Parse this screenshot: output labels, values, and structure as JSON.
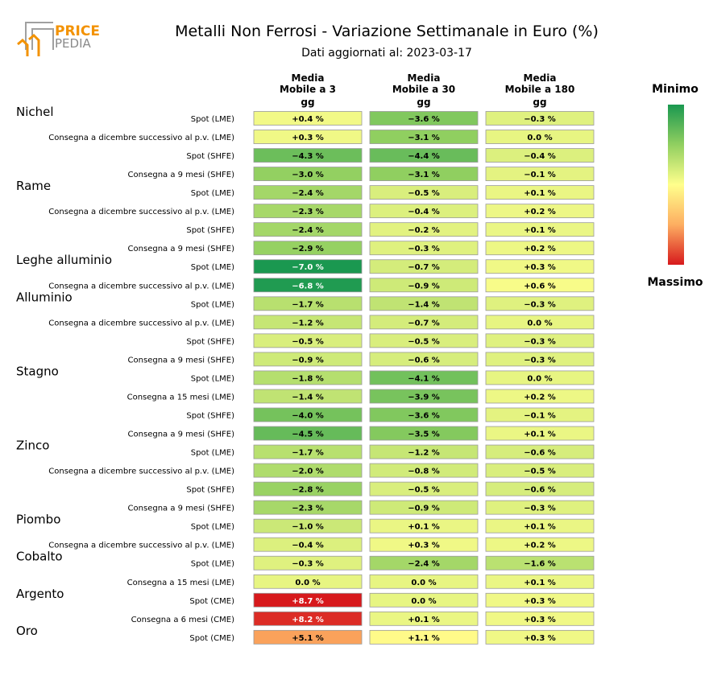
{
  "title": "Metalli Non Ferrosi - Variazione Settimanale in Euro (%)",
  "subtitle": "Dati aggiornati al: 2023-03-17",
  "logo": {
    "text_top": "PRICE",
    "text_bottom": "PEDIA",
    "color_top": "#f39200",
    "color_bottom": "#8a8a8a"
  },
  "legend": {
    "min_label": "Minimo",
    "max_label": "Massimo",
    "colors": [
      "#1a9850",
      "#91cf60",
      "#ffff8c",
      "#fdae61",
      "#d7191c"
    ]
  },
  "chart_data": {
    "type": "table",
    "columns": [
      {
        "line1": "Media",
        "line2": "Mobile a 3",
        "line3": "gg"
      },
      {
        "line1": "Media",
        "line2": "Mobile a 30",
        "line3": "gg"
      },
      {
        "line1": "Media",
        "line2": "Mobile a 180",
        "line3": "gg"
      }
    ],
    "rows": [
      {
        "group": "Nichel",
        "label": "Spot (LME)",
        "values": [
          0.4,
          -3.6,
          -0.3
        ]
      },
      {
        "group": "",
        "label": "Consegna a dicembre successivo al p.v. (LME)",
        "values": [
          0.3,
          -3.1,
          0.0
        ]
      },
      {
        "group": "",
        "label": "Spot (SHFE)",
        "values": [
          -4.3,
          -4.4,
          -0.4
        ]
      },
      {
        "group": "",
        "label": "Consegna a 9 mesi (SHFE)",
        "values": [
          -3.0,
          -3.1,
          -0.1
        ]
      },
      {
        "group": "Rame",
        "label": "Spot (LME)",
        "values": [
          -2.4,
          -0.5,
          0.1
        ]
      },
      {
        "group": "",
        "label": "Consegna a dicembre successivo al p.v. (LME)",
        "values": [
          -2.3,
          -0.4,
          0.2
        ]
      },
      {
        "group": "",
        "label": "Spot (SHFE)",
        "values": [
          -2.4,
          -0.2,
          0.1
        ]
      },
      {
        "group": "",
        "label": "Consegna a 9 mesi (SHFE)",
        "values": [
          -2.9,
          -0.3,
          0.2
        ]
      },
      {
        "group": "Leghe alluminio",
        "label": "Spot (LME)",
        "values": [
          -7.0,
          -0.7,
          0.3
        ]
      },
      {
        "group": "",
        "label": "Consegna a dicembre successivo al p.v. (LME)",
        "values": [
          -6.8,
          -0.9,
          0.6
        ]
      },
      {
        "group": "Alluminio",
        "label": "Spot (LME)",
        "values": [
          -1.7,
          -1.4,
          -0.3
        ]
      },
      {
        "group": "",
        "label": "Consegna a dicembre successivo al p.v. (LME)",
        "values": [
          -1.2,
          -0.7,
          0.0
        ]
      },
      {
        "group": "",
        "label": "Spot (SHFE)",
        "values": [
          -0.5,
          -0.5,
          -0.3
        ]
      },
      {
        "group": "",
        "label": "Consegna a 9 mesi (SHFE)",
        "values": [
          -0.9,
          -0.6,
          -0.3
        ]
      },
      {
        "group": "Stagno",
        "label": "Spot (LME)",
        "values": [
          -1.8,
          -4.1,
          0.0
        ]
      },
      {
        "group": "",
        "label": "Consegna a 15 mesi (LME)",
        "values": [
          -1.4,
          -3.9,
          0.2
        ]
      },
      {
        "group": "",
        "label": "Spot (SHFE)",
        "values": [
          -4.0,
          -3.6,
          -0.1
        ]
      },
      {
        "group": "",
        "label": "Consegna a 9 mesi (SHFE)",
        "values": [
          -4.5,
          -3.5,
          0.1
        ]
      },
      {
        "group": "Zinco",
        "label": "Spot (LME)",
        "values": [
          -1.7,
          -1.2,
          -0.6
        ]
      },
      {
        "group": "",
        "label": "Consegna a dicembre successivo al p.v. (LME)",
        "values": [
          -2.0,
          -0.8,
          -0.5
        ]
      },
      {
        "group": "",
        "label": "Spot (SHFE)",
        "values": [
          -2.8,
          -0.5,
          -0.6
        ]
      },
      {
        "group": "",
        "label": "Consegna a 9 mesi (SHFE)",
        "values": [
          -2.3,
          -0.9,
          -0.3
        ]
      },
      {
        "group": "Piombo",
        "label": "Spot (LME)",
        "values": [
          -1.0,
          0.1,
          0.1
        ]
      },
      {
        "group": "",
        "label": "Consegna a dicembre successivo al p.v. (LME)",
        "values": [
          -0.4,
          0.3,
          0.2
        ]
      },
      {
        "group": "Cobalto",
        "label": "Spot (LME)",
        "values": [
          -0.3,
          -2.4,
          -1.6
        ]
      },
      {
        "group": "",
        "label": "Consegna a 15 mesi (LME)",
        "values": [
          0.0,
          0.0,
          0.1
        ]
      },
      {
        "group": "Argento",
        "label": "Spot (CME)",
        "values": [
          8.7,
          0.0,
          0.3
        ]
      },
      {
        "group": "",
        "label": "Consegna a 6 mesi (CME)",
        "values": [
          8.2,
          0.1,
          0.3
        ]
      },
      {
        "group": "Oro",
        "label": "Spot (CME)",
        "values": [
          5.1,
          1.1,
          0.3
        ]
      }
    ],
    "value_format": "signed_percent_1dp",
    "color_scale": {
      "min": -7.0,
      "max": 8.7,
      "low_color": "#1a9850",
      "mid_color": "#ffff8c",
      "high_color": "#d7191c"
    }
  }
}
